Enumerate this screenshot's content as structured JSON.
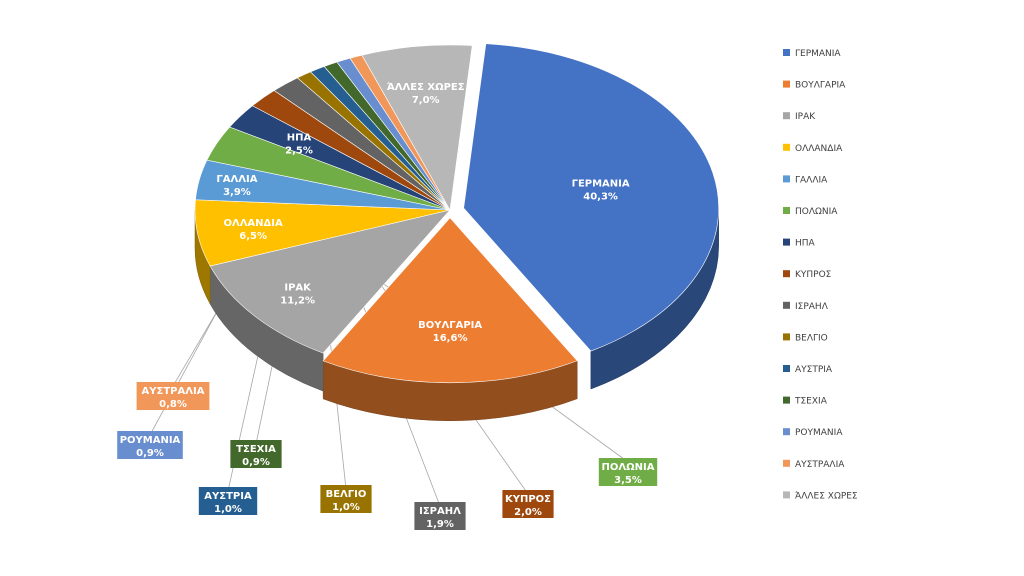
{
  "chart_data": {
    "type": "pie",
    "title": "",
    "legend_position": "right",
    "slices": [
      {
        "label": "ΓΕΡΜΑΝΙΑ",
        "value": 40.3,
        "display": "40,3%",
        "color": "#4472C4"
      },
      {
        "label": "ΒΟΥΛΓΑΡΙΑ",
        "value": 16.6,
        "display": "16,6%",
        "color": "#ED7D31"
      },
      {
        "label": "ΙΡΑΚ",
        "value": 11.2,
        "display": "11,2%",
        "color": "#A5A5A5"
      },
      {
        "label": "ΟΛΛΑΝΔΙΑ",
        "value": 6.5,
        "display": "6,5%",
        "color": "#FFC000"
      },
      {
        "label": "ΓΑΛΛΙΑ",
        "value": 3.9,
        "display": "3,9%",
        "color": "#5B9BD5"
      },
      {
        "label": "ΠΟΛΩΝΙΑ",
        "value": 3.5,
        "display": "3,5%",
        "color": "#70AD47"
      },
      {
        "label": "ΗΠΑ",
        "value": 2.5,
        "display": "2,5%",
        "color": "#264478"
      },
      {
        "label": "ΚΥΠΡΟΣ",
        "value": 2.0,
        "display": "2,0%",
        "color": "#9E480E"
      },
      {
        "label": "ΙΣΡΑΗΛ",
        "value": 1.9,
        "display": "1,9%",
        "color": "#636363"
      },
      {
        "label": "ΒΕΛΓΙΟ",
        "value": 1.0,
        "display": "1,0%",
        "color": "#997300"
      },
      {
        "label": "ΑΥΣΤΡΙΑ",
        "value": 1.0,
        "display": "1,0%",
        "color": "#255E91"
      },
      {
        "label": "ΤΣΕΧΙΑ",
        "value": 0.9,
        "display": "0,9%",
        "color": "#43682B"
      },
      {
        "label": "ΡΟΥΜΑΝΙΑ",
        "value": 0.9,
        "display": "0,9%",
        "color": "#698ED0"
      },
      {
        "label": "ΑΥΣΤΡΑΛΙΑ",
        "value": 0.8,
        "display": "0,8%",
        "color": "#F1975A"
      },
      {
        "label": "ΆΛΛΕΣ ΧΩΡΕΣ",
        "value": 7.0,
        "display": "7,0%",
        "color": "#B7B7B7"
      }
    ]
  }
}
